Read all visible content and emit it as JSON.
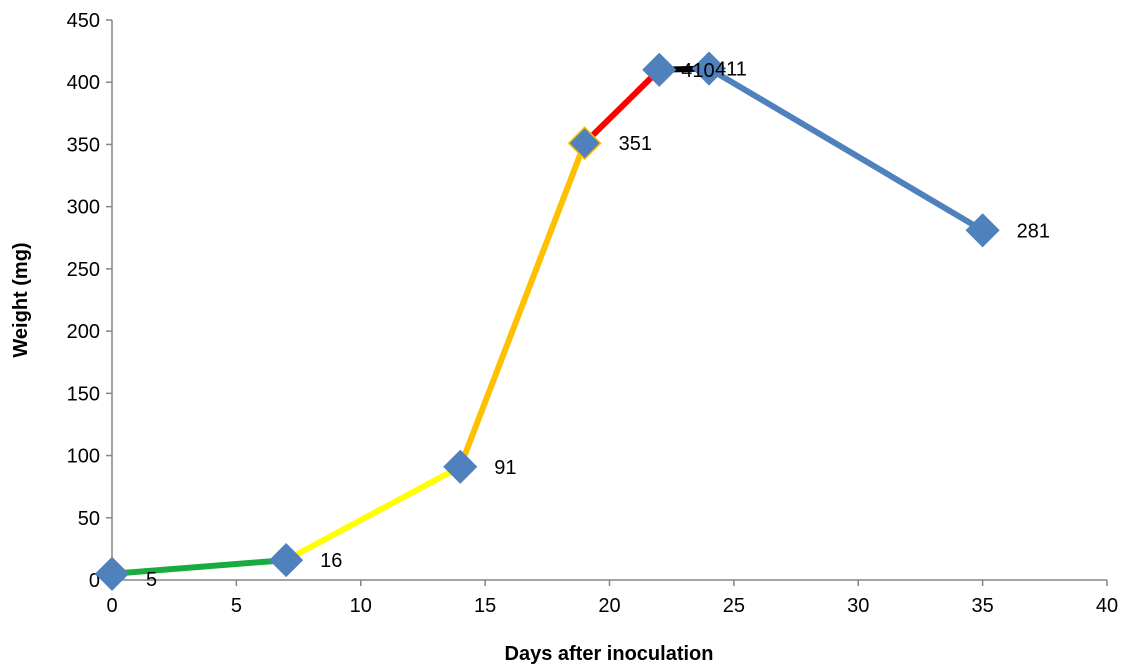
{
  "chart_data": {
    "type": "line",
    "title": "",
    "xlabel": "Days after inoculation",
    "ylabel": "Weight (mg)",
    "xlim": [
      0,
      40
    ],
    "ylim": [
      0,
      450
    ],
    "x_ticks": [
      0,
      5,
      10,
      15,
      20,
      25,
      30,
      35,
      40
    ],
    "y_ticks": [
      0,
      50,
      100,
      150,
      200,
      250,
      300,
      350,
      400,
      450
    ],
    "grid": false,
    "legend": "none",
    "series": [
      {
        "x": [
          0,
          7,
          14,
          19,
          22,
          24,
          35
        ],
        "y": [
          5,
          16,
          91,
          351,
          410,
          411,
          281
        ],
        "labels": [
          "5",
          "16",
          "91",
          "351",
          "410",
          "411",
          "281"
        ],
        "segment_colors": [
          "#1aab40",
          "#ffff00",
          "#ffc000",
          "#ff0000",
          "#000000",
          "#4f81bd"
        ],
        "marker": "diamond",
        "marker_color": "#4f81bd"
      }
    ]
  }
}
